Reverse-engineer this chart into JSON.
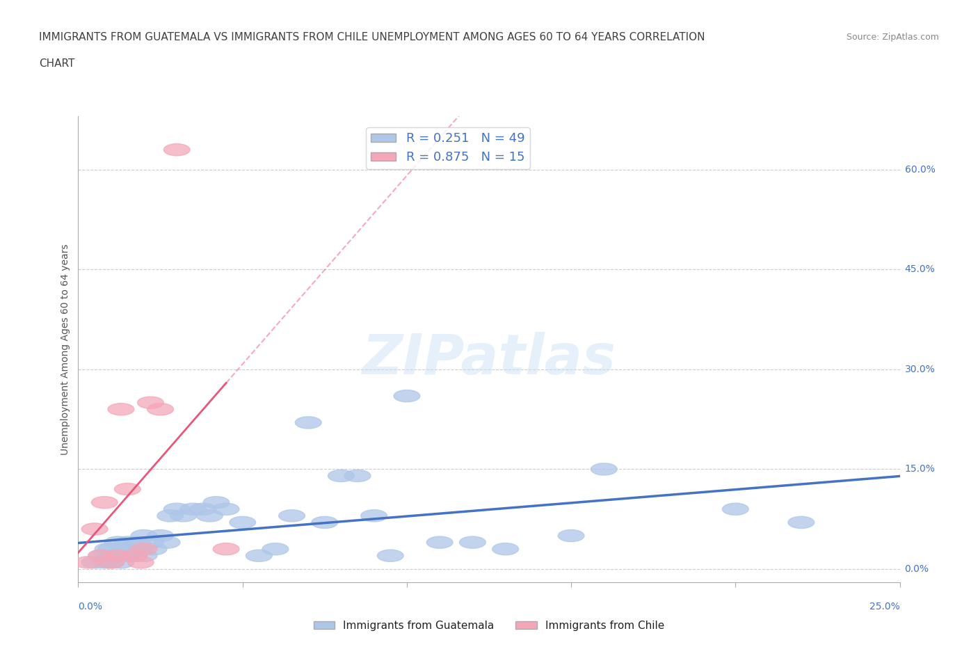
{
  "title_line1": "IMMIGRANTS FROM GUATEMALA VS IMMIGRANTS FROM CHILE UNEMPLOYMENT AMONG AGES 60 TO 64 YEARS CORRELATION",
  "title_line2": "CHART",
  "source": "Source: ZipAtlas.com",
  "ylabel": "Unemployment Among Ages 60 to 64 years",
  "ytick_labels": [
    "0.0%",
    "15.0%",
    "30.0%",
    "45.0%",
    "60.0%"
  ],
  "ytick_vals": [
    0.0,
    0.15,
    0.3,
    0.45,
    0.6
  ],
  "xlim": [
    0.0,
    0.25
  ],
  "ylim": [
    -0.02,
    0.68
  ],
  "legend_label1": "R = 0.251   N = 49",
  "legend_label2": "R = 0.875   N = 15",
  "legend_color1": "#aec6e8",
  "legend_color2": "#f4a7b9",
  "scatter_color1": "#aec6e8",
  "scatter_color2": "#f4a7b9",
  "line_color1": "#4472c4",
  "line_color2": "#e8567a",
  "watermark": "ZIPatlas",
  "tick_label_color": "#4472c4",
  "title_color": "#404040",
  "source_color": "#888888",
  "guatemala_x": [
    0.005,
    0.007,
    0.008,
    0.009,
    0.01,
    0.01,
    0.01,
    0.012,
    0.012,
    0.013,
    0.014,
    0.015,
    0.015,
    0.016,
    0.017,
    0.018,
    0.019,
    0.02,
    0.02,
    0.022,
    0.023,
    0.025,
    0.027,
    0.028,
    0.03,
    0.032,
    0.035,
    0.038,
    0.04,
    0.042,
    0.045,
    0.05,
    0.055,
    0.06,
    0.065,
    0.07,
    0.075,
    0.08,
    0.085,
    0.09,
    0.095,
    0.1,
    0.11,
    0.12,
    0.13,
    0.15,
    0.16,
    0.2,
    0.22
  ],
  "guatemala_y": [
    0.01,
    0.02,
    0.01,
    0.03,
    0.01,
    0.02,
    0.03,
    0.02,
    0.04,
    0.01,
    0.03,
    0.02,
    0.04,
    0.03,
    0.02,
    0.04,
    0.03,
    0.02,
    0.05,
    0.04,
    0.03,
    0.05,
    0.04,
    0.08,
    0.09,
    0.08,
    0.09,
    0.09,
    0.08,
    0.1,
    0.09,
    0.07,
    0.02,
    0.03,
    0.08,
    0.22,
    0.07,
    0.14,
    0.14,
    0.08,
    0.02,
    0.26,
    0.04,
    0.04,
    0.03,
    0.05,
    0.15,
    0.09,
    0.07
  ],
  "chile_x": [
    0.003,
    0.005,
    0.007,
    0.008,
    0.01,
    0.012,
    0.013,
    0.015,
    0.017,
    0.019,
    0.02,
    0.022,
    0.025,
    0.03,
    0.045
  ],
  "chile_y": [
    0.01,
    0.06,
    0.02,
    0.1,
    0.01,
    0.02,
    0.24,
    0.12,
    0.02,
    0.01,
    0.03,
    0.25,
    0.24,
    0.63,
    0.03
  ],
  "title_fontsize": 11,
  "label_fontsize": 10,
  "legend_fontsize": 13,
  "xtick_positions": [
    0.0,
    0.05,
    0.1,
    0.15,
    0.2,
    0.25
  ]
}
